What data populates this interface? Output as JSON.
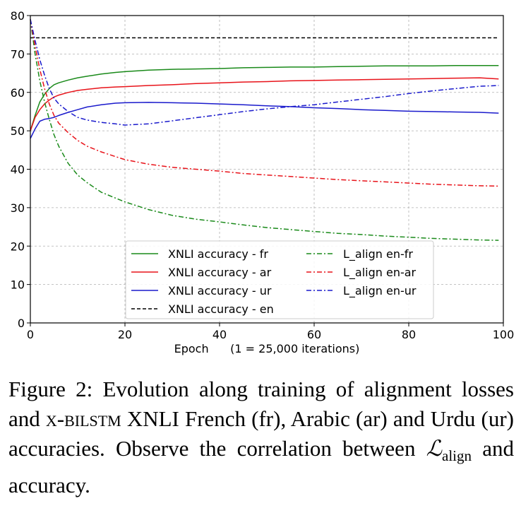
{
  "chart_data": {
    "type": "line",
    "xlabel": "Epoch      (1 = 25,000 iterations)",
    "ylabel": "",
    "xlim": [
      0,
      100
    ],
    "ylim": [
      0,
      80
    ],
    "xticks": [
      0,
      20,
      40,
      60,
      80,
      100
    ],
    "yticks": [
      0,
      10,
      20,
      30,
      40,
      50,
      60,
      70,
      80
    ],
    "grid": true,
    "legend_position": "lower-center",
    "x": [
      0,
      1,
      2,
      3,
      4,
      5,
      6,
      8,
      10,
      12,
      15,
      18,
      20,
      25,
      30,
      35,
      40,
      45,
      50,
      55,
      60,
      65,
      70,
      75,
      80,
      85,
      90,
      95,
      99
    ],
    "series": [
      {
        "name": "XNLI accuracy - fr",
        "color": "#1a8a1a",
        "dash": "solid",
        "values": [
          50.0,
          54.0,
          57.5,
          59.5,
          61.0,
          62.0,
          62.5,
          63.2,
          63.8,
          64.2,
          64.8,
          65.2,
          65.4,
          65.8,
          66.0,
          66.1,
          66.2,
          66.4,
          66.5,
          66.6,
          66.6,
          66.7,
          66.8,
          66.9,
          66.9,
          66.9,
          67.0,
          67.0,
          67.0
        ]
      },
      {
        "name": "XNLI accuracy - ar",
        "color": "#e8131a",
        "dash": "solid",
        "values": [
          50.0,
          53.5,
          55.5,
          57.0,
          58.0,
          58.8,
          59.3,
          60.0,
          60.5,
          60.8,
          61.2,
          61.4,
          61.5,
          61.8,
          62.0,
          62.3,
          62.5,
          62.7,
          62.8,
          63.0,
          63.1,
          63.2,
          63.3,
          63.4,
          63.5,
          63.6,
          63.7,
          63.8,
          63.5
        ]
      },
      {
        "name": "XNLI accuracy - ur",
        "color": "#1a1acc",
        "dash": "solid",
        "values": [
          48.0,
          50.5,
          52.5,
          53.0,
          53.2,
          53.5,
          54.0,
          54.8,
          55.5,
          56.2,
          56.8,
          57.2,
          57.3,
          57.4,
          57.3,
          57.2,
          57.0,
          56.8,
          56.5,
          56.3,
          56.0,
          55.8,
          55.5,
          55.3,
          55.1,
          55.0,
          54.9,
          54.8,
          54.6
        ]
      },
      {
        "name": "XNLI accuracy - en",
        "color": "#000000",
        "dash": "dashed",
        "values": [
          74.2,
          74.2,
          74.2,
          74.2,
          74.2,
          74.2,
          74.2,
          74.2,
          74.2,
          74.2,
          74.2,
          74.2,
          74.2,
          74.2,
          74.2,
          74.2,
          74.2,
          74.2,
          74.2,
          74.2,
          74.2,
          74.2,
          74.2,
          74.2,
          74.2,
          74.2,
          74.2,
          74.2,
          74.2
        ]
      },
      {
        "name": "L_align en-fr",
        "color": "#1a8a1a",
        "dash": "dashdot",
        "values": [
          79.0,
          70.0,
          63.0,
          57.5,
          53.0,
          49.0,
          46.0,
          41.5,
          38.5,
          36.5,
          34.0,
          32.5,
          31.5,
          29.5,
          28.0,
          27.0,
          26.3,
          25.5,
          24.8,
          24.3,
          23.8,
          23.3,
          23.0,
          22.6,
          22.3,
          22.0,
          21.8,
          21.6,
          21.5
        ]
      },
      {
        "name": "L_align en-ar",
        "color": "#e8131a",
        "dash": "dashdot",
        "values": [
          79.0,
          72.0,
          66.0,
          61.0,
          57.0,
          54.0,
          52.0,
          49.5,
          47.5,
          46.0,
          44.5,
          43.3,
          42.5,
          41.3,
          40.5,
          40.0,
          39.5,
          38.9,
          38.5,
          38.1,
          37.7,
          37.3,
          37.0,
          36.7,
          36.4,
          36.1,
          35.9,
          35.7,
          35.6
        ]
      },
      {
        "name": "L_align en-ur",
        "color": "#1a1acc",
        "dash": "dashdot",
        "values": [
          79.0,
          73.5,
          68.5,
          64.5,
          61.0,
          58.5,
          57.0,
          55.0,
          53.5,
          52.8,
          52.2,
          51.8,
          51.5,
          51.8,
          52.6,
          53.4,
          54.2,
          55.0,
          55.7,
          56.3,
          56.8,
          57.5,
          58.2,
          58.9,
          59.7,
          60.4,
          61.0,
          61.6,
          61.8
        ]
      }
    ]
  },
  "caption": {
    "prefix": "Figure 2:  Evolution along training of alignment losses and ",
    "model": "x-bilstm",
    "middle": " XNLI French (fr), Arabic (ar) and Urdu (ur) accuracies.  Observe the correlation between ",
    "loss_symbol": "ℒ",
    "loss_subscript": "align",
    "suffix": " and accuracy."
  }
}
